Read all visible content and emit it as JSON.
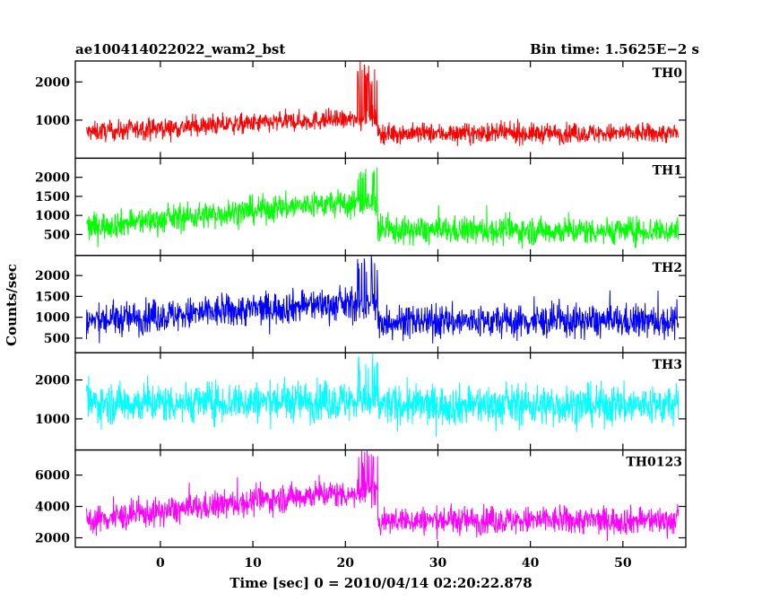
{
  "header": {
    "left": "ae100414022022_wam2_bst",
    "right": "Bin time: 1.5625E−2 s"
  },
  "xlabel": "Time [sec] 0 = 2010/04/14 02:20:22.878",
  "ylabel": "Counts/sec",
  "chart_data": {
    "type": "line",
    "xlim": [
      -9.2,
      56.8
    ],
    "bin_time": 0.015625,
    "x_start": -8.0,
    "x_end": 56.0,
    "x_ticks": [
      0,
      10,
      20,
      30,
      40,
      50
    ],
    "burst_time": 23.5,
    "grid": false,
    "series": [
      {
        "name": "TH0",
        "color": "#ff0000",
        "ylim": [
          0,
          2550
        ],
        "ticks": [
          1000,
          2000
        ],
        "level_pre_start": 680,
        "level_pre_peak": 1000,
        "level_post": 650,
        "noise": 130,
        "peak_max": 2550,
        "min_floor": 60
      },
      {
        "name": "TH1",
        "color": "#00ff00",
        "ylim": [
          -50,
          2500
        ],
        "ticks": [
          500,
          1000,
          1500,
          2000
        ],
        "level_pre_start": 700,
        "level_pre_peak": 1300,
        "level_post": 600,
        "noise": 180,
        "peak_max": 2300,
        "min_floor": 100
      },
      {
        "name": "TH2",
        "color": "#0000ff",
        "ylim": [
          150,
          2480
        ],
        "ticks": [
          500,
          1000,
          1500,
          2000
        ],
        "level_pre_start": 900,
        "level_pre_peak": 1300,
        "level_post": 900,
        "noise": 200,
        "peak_max": 2480,
        "min_floor": 240
      },
      {
        "name": "TH3",
        "color": "#00ffff",
        "ylim": [
          200,
          2700
        ],
        "ticks": [
          1000,
          2000
        ],
        "level_pre_start": 1400,
        "level_pre_peak": 1450,
        "level_post": 1350,
        "noise": 260,
        "peak_max": 2700,
        "min_floor": 450
      },
      {
        "name": "TH0123",
        "color": "#ff00ff",
        "ylim": [
          1400,
          7600
        ],
        "ticks": [
          2000,
          4000,
          6000
        ],
        "level_pre_start": 3100,
        "level_pre_peak": 4800,
        "level_post": 3100,
        "noise": 450,
        "peak_max": 7600,
        "min_floor": 1800
      }
    ]
  }
}
